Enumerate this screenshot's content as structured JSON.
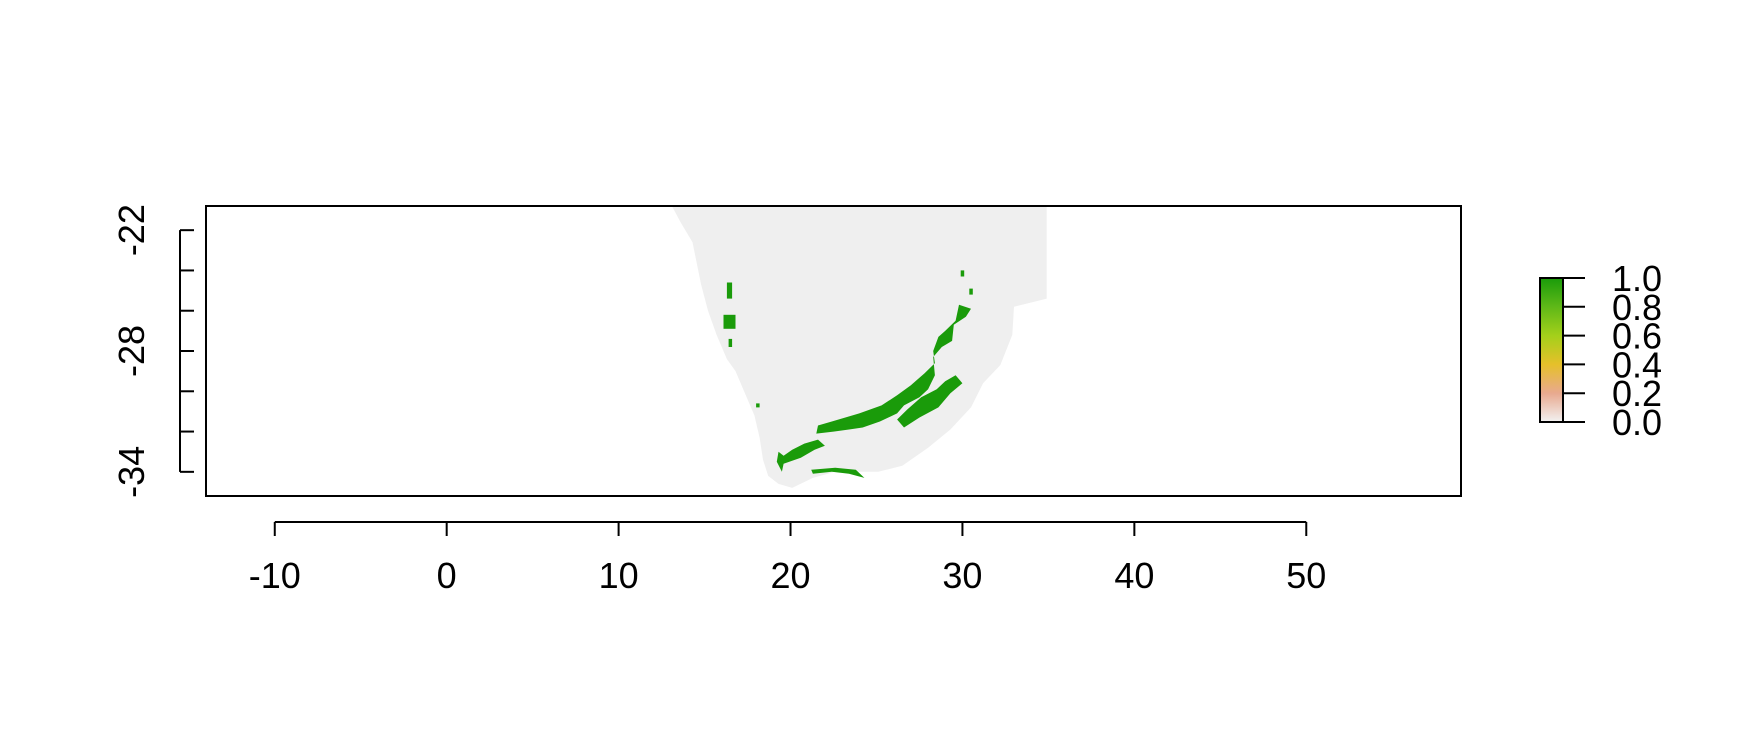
{
  "chart_data": {
    "type": "raster-map",
    "title": "",
    "xlabel": "",
    "ylabel": "",
    "xlim": [
      -14,
      59
    ],
    "ylim": [
      -35.2,
      -20.8
    ],
    "x_ticks": [
      {
        "value": -10,
        "label": "-10"
      },
      {
        "value": 0,
        "label": "0"
      },
      {
        "value": 10,
        "label": "10"
      },
      {
        "value": 20,
        "label": "20"
      },
      {
        "value": 30,
        "label": "30"
      },
      {
        "value": 40,
        "label": "40"
      },
      {
        "value": 50,
        "label": "50"
      }
    ],
    "y_ticks": [
      {
        "value": -34,
        "label": "-34"
      },
      {
        "value": -32,
        "label": ""
      },
      {
        "value": -30,
        "label": ""
      },
      {
        "value": -28,
        "label": "-28"
      },
      {
        "value": -26,
        "label": ""
      },
      {
        "value": -24,
        "label": ""
      },
      {
        "value": -22,
        "label": "-22"
      }
    ],
    "land_color": "#efefef",
    "presence_color": "#1a9b0a",
    "land_outline": [
      [
        13.1,
        -20.8
      ],
      [
        34.9,
        -20.8
      ],
      [
        34.9,
        -25.4
      ],
      [
        33.0,
        -25.8
      ],
      [
        32.9,
        -27.2
      ],
      [
        32.2,
        -28.7
      ],
      [
        31.2,
        -29.6
      ],
      [
        30.5,
        -30.8
      ],
      [
        29.3,
        -31.9
      ],
      [
        28.0,
        -32.8
      ],
      [
        26.5,
        -33.7
      ],
      [
        25.1,
        -34.0
      ],
      [
        23.8,
        -34.0
      ],
      [
        22.6,
        -34.0
      ],
      [
        21.3,
        -34.3
      ],
      [
        20.1,
        -34.8
      ],
      [
        19.3,
        -34.6
      ],
      [
        18.7,
        -34.2
      ],
      [
        18.4,
        -33.4
      ],
      [
        18.2,
        -32.3
      ],
      [
        17.9,
        -31.2
      ],
      [
        17.4,
        -30.2
      ],
      [
        16.8,
        -29.0
      ],
      [
        16.3,
        -28.4
      ],
      [
        15.7,
        -27.2
      ],
      [
        15.2,
        -26.0
      ],
      [
        14.8,
        -24.7
      ],
      [
        14.3,
        -22.6
      ],
      [
        13.6,
        -21.6
      ]
    ],
    "presence_patches": [
      [
        [
          25.2,
          -31.5
        ],
        [
          26.2,
          -31.1
        ],
        [
          26.6,
          -30.7
        ],
        [
          27.5,
          -30.3
        ],
        [
          28.0,
          -29.9
        ],
        [
          28.4,
          -29.2
        ],
        [
          28.3,
          -28.3
        ],
        [
          28.8,
          -27.8
        ],
        [
          29.4,
          -27.5
        ],
        [
          29.5,
          -26.7
        ],
        [
          30.2,
          -26.3
        ],
        [
          30.5,
          -25.9
        ],
        [
          29.8,
          -25.7
        ],
        [
          29.6,
          -26.5
        ],
        [
          29.0,
          -27.0
        ],
        [
          28.6,
          -27.3
        ],
        [
          28.3,
          -28.0
        ],
        [
          28.4,
          -28.6
        ],
        [
          27.8,
          -29.1
        ],
        [
          27.0,
          -29.7
        ],
        [
          26.2,
          -30.2
        ],
        [
          25.3,
          -30.7
        ],
        [
          24.0,
          -31.1
        ],
        [
          22.4,
          -31.5
        ],
        [
          21.6,
          -31.7
        ],
        [
          21.5,
          -32.1
        ],
        [
          22.5,
          -32.0
        ],
        [
          23.4,
          -31.9
        ],
        [
          24.2,
          -31.8
        ]
      ],
      [
        [
          26.6,
          -31.8
        ],
        [
          27.5,
          -31.3
        ],
        [
          28.6,
          -30.8
        ],
        [
          29.3,
          -30.1
        ],
        [
          30.0,
          -29.6
        ],
        [
          29.6,
          -29.2
        ],
        [
          29.0,
          -29.5
        ],
        [
          28.5,
          -29.9
        ],
        [
          27.6,
          -30.3
        ],
        [
          26.8,
          -30.9
        ],
        [
          26.2,
          -31.4
        ]
      ],
      [
        [
          19.6,
          -33.6
        ],
        [
          20.6,
          -33.3
        ],
        [
          21.4,
          -32.9
        ],
        [
          22.0,
          -32.7
        ],
        [
          21.6,
          -32.4
        ],
        [
          20.8,
          -32.6
        ],
        [
          20.1,
          -32.9
        ],
        [
          19.6,
          -33.2
        ],
        [
          19.3,
          -33.0
        ],
        [
          19.2,
          -33.5
        ],
        [
          19.5,
          -34.0
        ]
      ],
      [
        [
          21.2,
          -33.9
        ],
        [
          22.6,
          -33.8
        ],
        [
          23.8,
          -33.9
        ],
        [
          24.3,
          -34.3
        ],
        [
          23.4,
          -34.1
        ],
        [
          22.4,
          -34.0
        ],
        [
          21.3,
          -34.1
        ]
      ],
      [
        [
          16.3,
          -24.6
        ],
        [
          16.6,
          -24.6
        ],
        [
          16.6,
          -25.4
        ],
        [
          16.3,
          -25.4
        ]
      ],
      [
        [
          16.1,
          -26.2
        ],
        [
          16.8,
          -26.2
        ],
        [
          16.8,
          -26.9
        ],
        [
          16.1,
          -26.9
        ]
      ],
      [
        [
          16.4,
          -27.4
        ],
        [
          16.6,
          -27.4
        ],
        [
          16.6,
          -27.8
        ],
        [
          16.4,
          -27.8
        ]
      ],
      [
        [
          18.0,
          -30.6
        ],
        [
          18.2,
          -30.6
        ],
        [
          18.2,
          -30.8
        ],
        [
          18.0,
          -30.8
        ]
      ],
      [
        [
          29.9,
          -24.0
        ],
        [
          30.1,
          -24.0
        ],
        [
          30.1,
          -24.3
        ],
        [
          29.9,
          -24.3
        ]
      ],
      [
        [
          30.4,
          -24.9
        ],
        [
          30.6,
          -24.9
        ],
        [
          30.6,
          -25.2
        ],
        [
          30.4,
          -25.2
        ]
      ]
    ],
    "legend": {
      "placement": "right",
      "min": 0,
      "max": 1,
      "ticks": [
        {
          "value": 0.0,
          "label": "0.0"
        },
        {
          "value": 0.2,
          "label": "0.2"
        },
        {
          "value": 0.4,
          "label": "0.4"
        },
        {
          "value": 0.6,
          "label": "0.6"
        },
        {
          "value": 0.8,
          "label": "0.8"
        },
        {
          "value": 1.0,
          "label": "1.0"
        }
      ],
      "colors": [
        {
          "value": 0.0,
          "color": "#f2f2f2"
        },
        {
          "value": 0.2,
          "color": "#e8a98f"
        },
        {
          "value": 0.4,
          "color": "#e6c02a"
        },
        {
          "value": 0.6,
          "color": "#a4d01a"
        },
        {
          "value": 0.8,
          "color": "#5fb818"
        },
        {
          "value": 1.0,
          "color": "#1a9b0a"
        }
      ]
    }
  }
}
